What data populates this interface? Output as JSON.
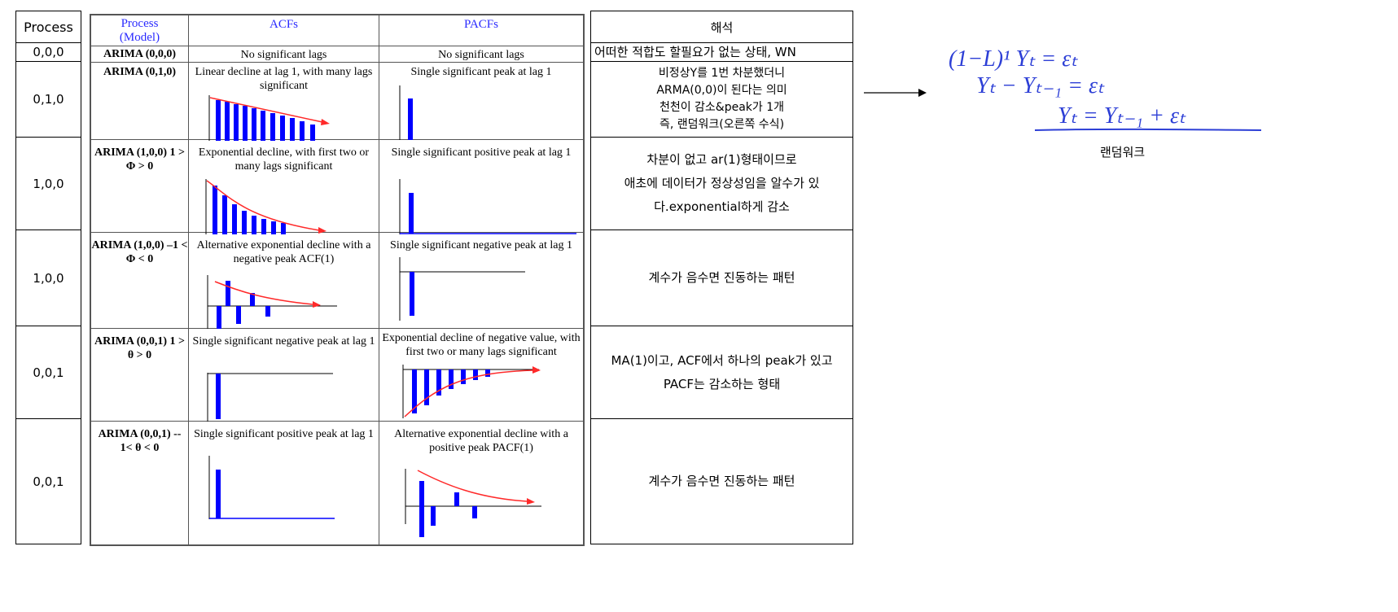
{
  "left_table": {
    "header": "Process",
    "rows": [
      "0,0,0",
      "0,1,0",
      "1,0,0",
      "1,0,0",
      "0,0,1",
      "0,0,1"
    ]
  },
  "main_table": {
    "headers": {
      "model": "Process\n(Model)",
      "acf": "ACFs",
      "pacf": "PACFs"
    },
    "rows": [
      {
        "model": "ARIMA (0,0,0)",
        "acf": "No significant lags",
        "pacf": "No significant lags"
      },
      {
        "model": "ARIMA (0,1,0)",
        "acf": "Linear decline at lag 1, with many lags significant",
        "pacf": "Single significant peak at lag 1"
      },
      {
        "model": "ARIMA (1,0,0) 1 > Φ > 0",
        "acf": "Exponential decline, with first two or many lags significant",
        "pacf": "Single significant positive peak at lag 1"
      },
      {
        "model": "ARIMA (1,0,0) –1 < Φ < 0",
        "acf": "Alternative exponential decline with a negative peak ACF(1)",
        "pacf": "Single significant negative peak at lag 1"
      },
      {
        "model": "ARIMA (0,0,1) 1 > θ > 0",
        "acf": "Single significant negative peak at lag 1",
        "pacf": "Exponential decline of negative value, with first two or many lags significant"
      },
      {
        "model": "ARIMA (0,0,1) -- 1< θ < 0",
        "acf": "Single significant positive peak at lag 1",
        "pacf": "Alternative exponential decline with a positive peak PACF(1)"
      }
    ]
  },
  "interpretation": {
    "header": "해석",
    "rows": [
      "어떠한 적합도 할필요가 없는 상태, WN",
      "비정상Y를 1번 차분했더니\nARMA(0,0)이 된다는 의미\n천천이 감소&peak가 1개\n즉, 랜덤워크(오른쪽 수식)",
      "차분이 없고 ar(1)형태이므로\n애초에 데이터가 정상성임을 알수가 있\n다.exponential하게 감소",
      "계수가 음수면 진동하는 패턴",
      "MA(1)이고, ACF에서 하나의 peak가 있고\nPACF는 감소하는 형태",
      "계수가 음수면 진동하는 패턴"
    ]
  },
  "annotation": {
    "handwriting": [
      "(1−L)¹ Yₜ = εₜ",
      "Yₜ − Yₜ₋₁ = εₜ",
      "Yₜ = Yₜ₋₁ + εₜ"
    ],
    "caption": "랜덤워크",
    "ink_color": "#2d3fd6"
  },
  "colors": {
    "bar": "#0000ff",
    "curve": "#ff2a2a",
    "header_blue": "#2a2aff"
  }
}
